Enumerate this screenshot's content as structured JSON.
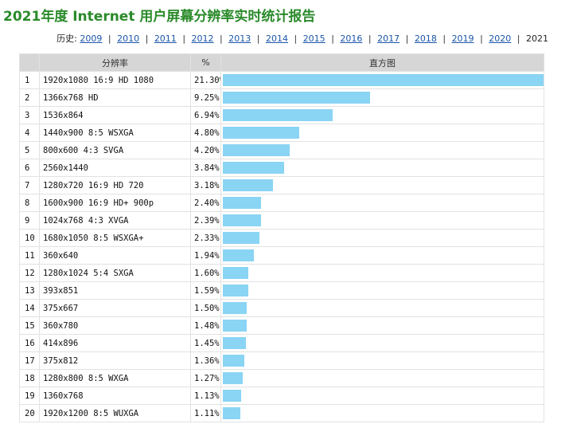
{
  "title": "2021年度 Internet 用户屏幕分辨率实时统计报告",
  "history": {
    "label": "历史:",
    "years": [
      "2009",
      "2010",
      "2011",
      "2012",
      "2013",
      "2014",
      "2015",
      "2016",
      "2017",
      "2018",
      "2019",
      "2020"
    ],
    "current": "2021"
  },
  "table": {
    "headers": [
      "",
      "分辨率",
      "%",
      "直方图"
    ]
  },
  "chart_data": {
    "type": "bar",
    "title": "2021年度 Internet 用户屏幕分辨率实时统计报告",
    "categories": [
      "1920x1080 16:9 HD 1080",
      "1366x768 HD",
      "1536x864",
      "1440x900 8:5 WSXGA",
      "800x600 4:3 SVGA",
      "2560x1440",
      "1280x720 16:9 HD 720",
      "1600x900 16:9 HD+ 900p",
      "1024x768 4:3 XVGA",
      "1680x1050 8:5 WSXGA+",
      "360x640",
      "1280x1024 5:4 SXGA",
      "393x851",
      "375x667",
      "360x780",
      "414x896",
      "375x812",
      "1280x800 8:5 WXGA",
      "1360x768",
      "1920x1200 8:5 WUXGA"
    ],
    "ranks": [
      "1",
      "2",
      "3",
      "4",
      "5",
      "6",
      "7",
      "8",
      "9",
      "10",
      "11",
      "12",
      "13",
      "14",
      "15",
      "16",
      "17",
      "18",
      "19",
      "20"
    ],
    "labels": [
      "21.30%",
      "9.25%",
      "6.94%",
      "4.80%",
      "4.20%",
      "3.84%",
      "3.18%",
      "2.40%",
      "2.39%",
      "2.33%",
      "1.94%",
      "1.60%",
      "1.59%",
      "1.50%",
      "1.48%",
      "1.45%",
      "1.36%",
      "1.27%",
      "1.13%",
      "1.11%"
    ],
    "values": [
      21.3,
      9.25,
      6.94,
      4.8,
      4.2,
      3.84,
      3.18,
      2.4,
      2.39,
      2.33,
      1.94,
      1.6,
      1.59,
      1.5,
      1.48,
      1.45,
      1.36,
      1.27,
      1.13,
      1.11
    ],
    "bar_color": "#8ad4f4",
    "xlabel": "",
    "ylabel": ""
  }
}
